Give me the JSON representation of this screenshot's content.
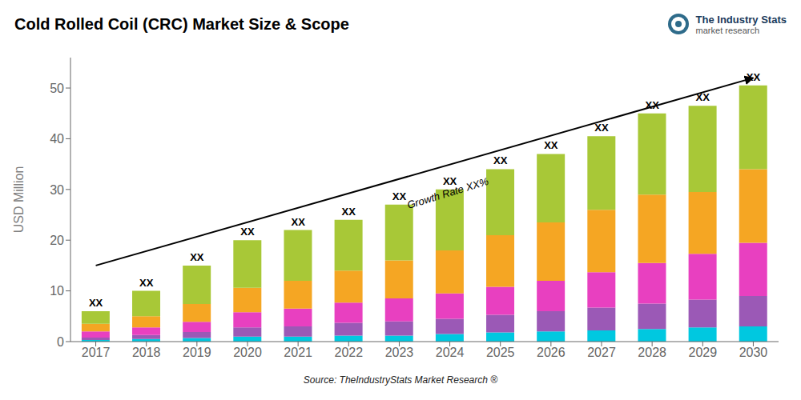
{
  "chart_data": {
    "type": "bar",
    "stacked": true,
    "title": "Cold Rolled Coil (CRC) Market Size & Scope",
    "y_label": "USD Million",
    "categories": [
      "2017",
      "2018",
      "2019",
      "2020",
      "2021",
      "2022",
      "2023",
      "2024",
      "2025",
      "2026",
      "2027",
      "2028",
      "2029",
      "2030"
    ],
    "series": [
      {
        "color": "#00c8e0",
        "values": [
          0.3,
          0.5,
          0.7,
          1.0,
          1.0,
          1.2,
          1.2,
          1.5,
          1.8,
          2.0,
          2.2,
          2.5,
          2.8,
          3.0
        ]
      },
      {
        "color": "#9b59b6",
        "values": [
          0.5,
          0.8,
          1.2,
          1.8,
          2.0,
          2.5,
          2.8,
          3.0,
          3.5,
          4.0,
          4.5,
          5.0,
          5.5,
          6.0
        ]
      },
      {
        "color": "#e840c0",
        "values": [
          1.2,
          1.5,
          2.0,
          3.0,
          3.5,
          4.0,
          4.5,
          5.0,
          5.5,
          6.0,
          7.0,
          8.0,
          9.0,
          10.5
        ]
      },
      {
        "color": "#f5a623",
        "values": [
          1.5,
          2.2,
          3.5,
          4.8,
          5.5,
          6.3,
          7.5,
          8.5,
          10.2,
          11.5,
          12.3,
          13.5,
          12.2,
          14.5
        ]
      },
      {
        "color": "#a8c837",
        "values": [
          2.5,
          5.0,
          7.6,
          9.4,
          10.0,
          10.0,
          11.0,
          12.0,
          13.0,
          13.5,
          14.5,
          16.0,
          17.0,
          16.5
        ]
      }
    ],
    "ylim": [
      0,
      56
    ],
    "yticks": [
      0,
      10,
      20,
      30,
      40,
      50
    ],
    "grid": false,
    "annotations": [
      {
        "text": "XX",
        "x": "2017",
        "y": 6
      },
      {
        "text": "XX",
        "x": "2018",
        "y": 10
      },
      {
        "text": "XX",
        "x": "2019",
        "y": 15
      },
      {
        "text": "XX",
        "x": "2020",
        "y": 20
      },
      {
        "text": "XX",
        "x": "2021",
        "y": 22
      },
      {
        "text": "XX",
        "x": "2022",
        "y": 24
      },
      {
        "text": "XX",
        "x": "2023",
        "y": 27
      },
      {
        "text": "XX",
        "x": "2024",
        "y": 30
      },
      {
        "text": "XX",
        "x": "2025",
        "y": 34
      },
      {
        "text": "XX",
        "x": "2026",
        "y": 37
      },
      {
        "text": "XX",
        "x": "2027",
        "y": 40.5
      },
      {
        "text": "XX",
        "x": "2028",
        "y": 45
      },
      {
        "text": "XX",
        "x": "2029",
        "y": 46.5
      },
      {
        "text": "XX",
        "x": "2030",
        "y": 50.5
      },
      {
        "text": "Growth Rate XX%",
        "x": "2024",
        "y": 28
      }
    ],
    "arrow": {
      "from": {
        "x": "2017",
        "y": 15
      },
      "to": {
        "x": "2030",
        "y": 52
      }
    },
    "source": "Source: TheIndustryStats Market Research ®",
    "logo": [
      "The Industry Stats",
      "market research"
    ]
  }
}
